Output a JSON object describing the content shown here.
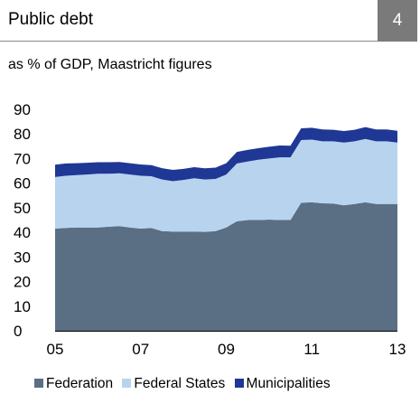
{
  "header": {
    "title": "Public debt",
    "badge": "4"
  },
  "subtitle": "as % of GDP, Maastricht figures",
  "colors": {
    "federation": "#5a6e84",
    "federal_states": "#b8d3ee",
    "municipalities": "#1f3795",
    "badge": "#7a7a7a"
  },
  "chart_data": {
    "type": "area",
    "stacked": true,
    "x": [
      2005.0,
      2005.25,
      2005.5,
      2005.75,
      2006.0,
      2006.25,
      2006.5,
      2006.75,
      2007.0,
      2007.25,
      2007.5,
      2007.75,
      2008.0,
      2008.25,
      2008.5,
      2008.75,
      2009.0,
      2009.25,
      2009.5,
      2009.75,
      2010.0,
      2010.25,
      2010.5,
      2010.75,
      2011.0,
      2011.25,
      2011.5,
      2011.75,
      2012.0,
      2012.25,
      2012.5,
      2012.75,
      2013.0
    ],
    "series": [
      {
        "name": "Federation",
        "values": [
          41.5,
          41.8,
          42.0,
          42.0,
          42.0,
          42.3,
          42.5,
          42.0,
          41.5,
          41.8,
          40.5,
          40.3,
          40.3,
          40.3,
          40.2,
          40.5,
          42.0,
          44.5,
          45.0,
          45.0,
          45.2,
          45.0,
          45.0,
          52.0,
          52.2,
          51.8,
          51.7,
          51.0,
          51.5,
          52.2,
          51.5,
          51.5,
          51.5
        ]
      },
      {
        "name": "Federal States",
        "values": [
          21.0,
          21.2,
          21.3,
          21.5,
          21.8,
          21.5,
          21.5,
          21.5,
          21.5,
          21.0,
          21.0,
          20.5,
          21.0,
          21.7,
          21.3,
          21.2,
          21.5,
          23.5,
          23.8,
          24.5,
          24.8,
          25.5,
          25.5,
          25.5,
          25.5,
          25.2,
          25.3,
          25.5,
          25.5,
          25.8,
          25.5,
          25.5,
          25.0
        ]
      },
      {
        "name": "Municipalities",
        "values": [
          5.0,
          5.0,
          4.8,
          4.8,
          4.7,
          4.7,
          4.6,
          4.6,
          4.6,
          4.5,
          4.6,
          4.6,
          4.5,
          4.5,
          4.5,
          4.6,
          4.6,
          4.7,
          4.7,
          4.7,
          4.8,
          4.8,
          4.7,
          4.8,
          4.8,
          4.8,
          4.7,
          4.7,
          4.7,
          4.8,
          4.8,
          4.8,
          4.8
        ]
      }
    ],
    "xticks": [
      "05",
      "07",
      "09",
      "11",
      "13"
    ],
    "xtick_values": [
      2005,
      2007,
      2009,
      2011,
      2013
    ],
    "yticks": [
      "0",
      "10",
      "20",
      "30",
      "40",
      "50",
      "60",
      "70",
      "80",
      "90"
    ],
    "xlim": [
      2005,
      2013
    ],
    "ylim": [
      0,
      90
    ],
    "grid": false,
    "legend_position": "bottom"
  }
}
